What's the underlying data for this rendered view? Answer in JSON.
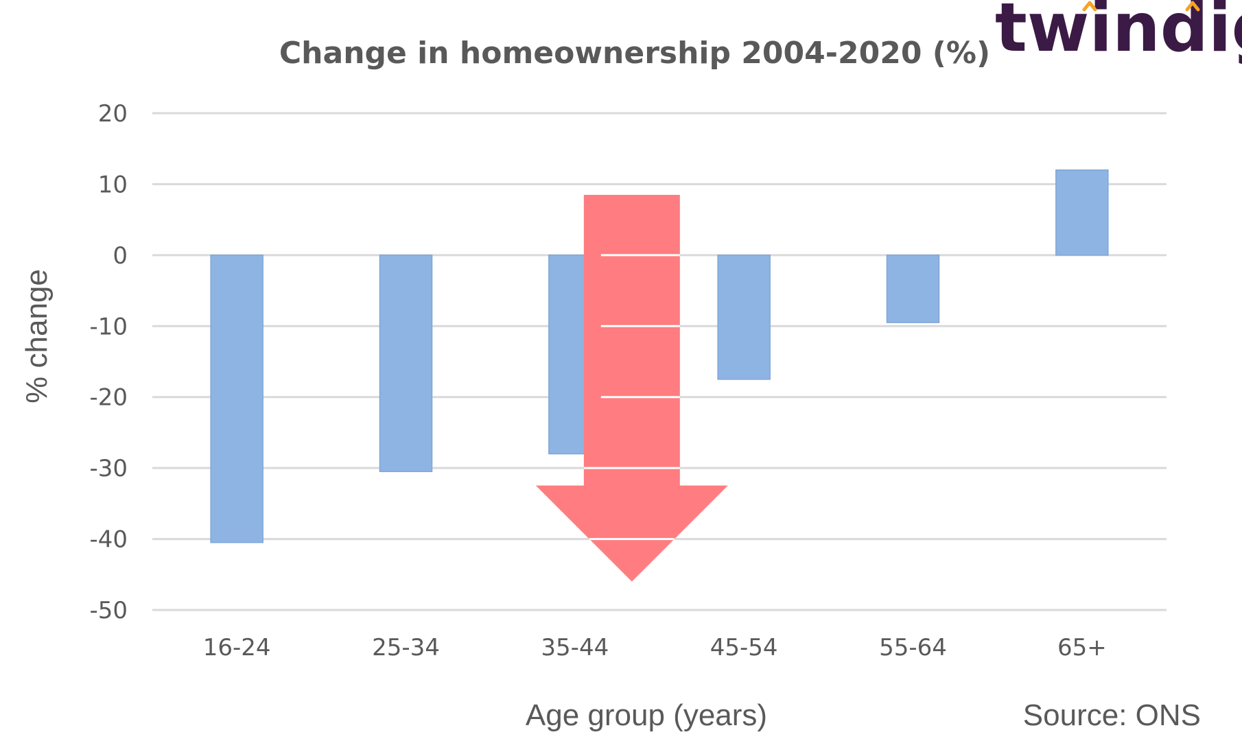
{
  "logo": {
    "text": "twindig",
    "accent_color": "#f6a323",
    "text_color": "#3b1a45"
  },
  "source": "Source: ONS",
  "colors": {
    "bar": "#8eb4e3",
    "arrow": "#ff7c80",
    "grid": "#d9d9d9",
    "text": "#595959"
  },
  "chart_data": {
    "type": "bar",
    "title": "Change in homeownership 2004-2020 (%)",
    "xlabel": "Age group (years)",
    "ylabel": "% change",
    "categories": [
      "16-24",
      "25-34",
      "35-44",
      "45-54",
      "55-64",
      "65+"
    ],
    "values": [
      -40.5,
      -30.5,
      -28,
      -17.5,
      -9.5,
      12
    ],
    "ylim": [
      -50,
      20
    ],
    "yticks": [
      20,
      10,
      0,
      -10,
      -20,
      -30,
      -40,
      -50
    ],
    "grid": true,
    "legend": "none",
    "annotations": [
      {
        "type": "down-arrow",
        "category": "35-44",
        "from": 8.5,
        "to": -46
      }
    ]
  }
}
